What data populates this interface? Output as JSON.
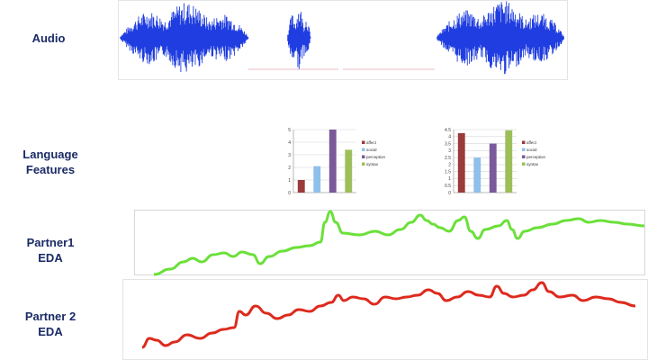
{
  "labels": {
    "audio": "Audio",
    "language": "Language\nFeatures",
    "partner1": "Partner1\nEDA",
    "partner2": "Partner 2\nEDA"
  },
  "colors": {
    "label": "#1a2a66",
    "waveform": "#1f3de0",
    "partner1_line": "#6be03a",
    "partner2_line": "#dd2a1e",
    "affect": "#9b3a3a",
    "social": "#8fc0ea",
    "perception": "#7a5a9a",
    "syntax": "#9cbf5a"
  },
  "chart_data": [
    {
      "type": "bar",
      "categories": [
        "affect",
        "social",
        "perception",
        "syntax"
      ],
      "values": [
        1.0,
        2.1,
        5.2,
        3.4
      ],
      "ylim": [
        0,
        5
      ],
      "yticks": [
        "0",
        "1",
        "2",
        "3",
        "4",
        "5"
      ],
      "legend": [
        "affect",
        "social",
        "perception",
        "syntax"
      ],
      "legend_position": "right"
    },
    {
      "type": "bar",
      "categories": [
        "affect",
        "social",
        "perception",
        "syntax"
      ],
      "values": [
        4.25,
        2.5,
        3.5,
        4.45
      ],
      "ylim": [
        0,
        4.5
      ],
      "yticks": [
        "0",
        "0.5",
        "1",
        "1.5",
        "2",
        "2.5",
        "3",
        "3.5",
        "4",
        "4.5"
      ],
      "legend": [
        "affect",
        "social",
        "perception",
        "syntax"
      ],
      "legend_position": "right"
    }
  ]
}
